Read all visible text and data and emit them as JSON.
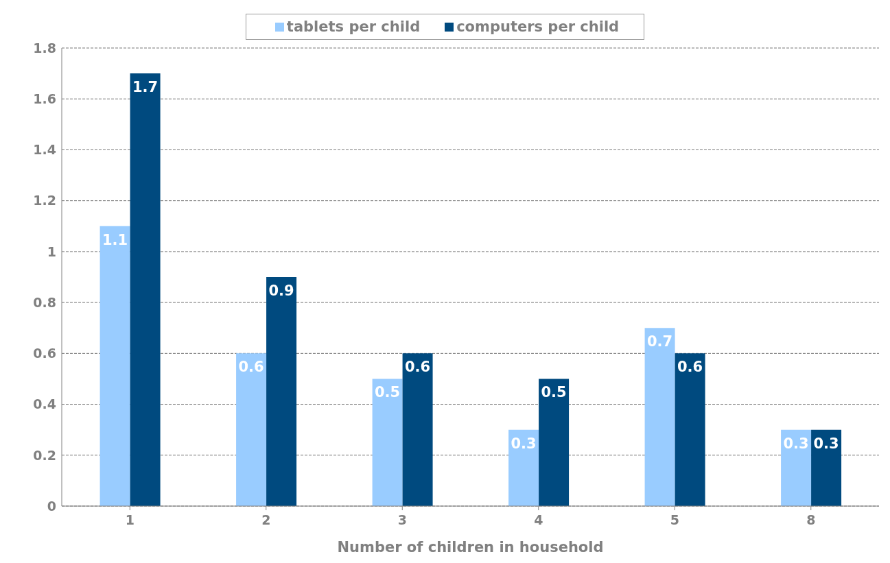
{
  "chart_data": {
    "type": "bar",
    "xlabel": "Number of children in household",
    "categories": [
      "1",
      "2",
      "3",
      "4",
      "5",
      "8"
    ],
    "series": [
      {
        "name": "tablets per child",
        "color": "#99ccff",
        "values": [
          1.1,
          0.6,
          0.5,
          0.3,
          0.7,
          0.3
        ]
      },
      {
        "name": "computers per child",
        "color": "#004a7f",
        "values": [
          1.7,
          0.9,
          0.6,
          0.5,
          0.6,
          0.3
        ]
      }
    ],
    "ylim": [
      0,
      1.8
    ],
    "yticks": [
      0,
      0.2,
      0.4,
      0.6,
      0.8,
      1,
      1.2,
      1.4,
      1.6,
      1.8
    ],
    "grid": "y",
    "legend": "top",
    "data_labels": true
  }
}
